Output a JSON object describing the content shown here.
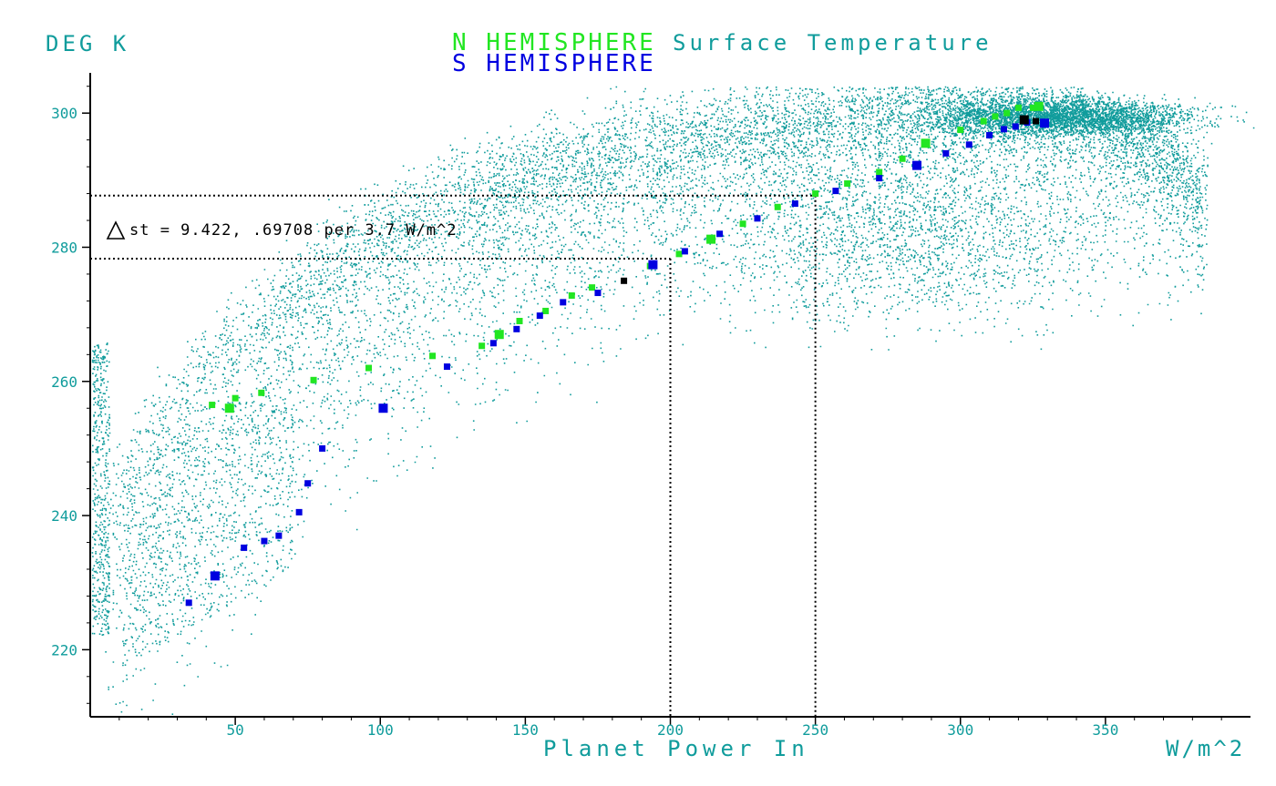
{
  "chart_data": {
    "type": "scatter",
    "title_parts": {
      "north": "N HEMISPHERE",
      "main": "Surface Temperature",
      "south": "S HEMISPHERE"
    },
    "ylabel": "DEG K",
    "xlabel": "Planet Power In",
    "xunit": "W/m^2",
    "xlim": [
      0,
      400
    ],
    "ylim": [
      210,
      306
    ],
    "xticks": [
      50,
      100,
      150,
      200,
      250,
      300,
      350
    ],
    "yticks": [
      220,
      240,
      260,
      280,
      300
    ],
    "annotation": {
      "text": "st = 9.422, .69708 per 3.7 W/m^2",
      "symbol": "triangle-delta",
      "ref_lines": [
        {
          "x": 200,
          "y": 278.3
        },
        {
          "x": 250,
          "y": 287.7
        }
      ]
    },
    "colors": {
      "scatter": "#109c9c",
      "north": "#22e622",
      "south": "#0000e0",
      "mixed": "#000000",
      "axis": "#000000"
    },
    "series": [
      {
        "name": "N HEMISPHERE",
        "color": "#22e622",
        "points": [
          [
            42,
            256.5
          ],
          [
            48,
            256
          ],
          [
            50,
            257.5
          ],
          [
            59,
            258.3
          ],
          [
            77,
            260.2
          ],
          [
            96,
            262
          ],
          [
            118,
            263.8
          ],
          [
            135,
            265.3
          ],
          [
            141,
            267
          ],
          [
            148,
            269
          ],
          [
            157,
            270.5
          ],
          [
            166,
            272.8
          ],
          [
            173,
            274
          ],
          [
            193,
            277.2
          ],
          [
            203,
            279
          ],
          [
            214,
            281.2
          ],
          [
            225,
            283.5
          ],
          [
            237,
            286
          ],
          [
            250,
            288
          ],
          [
            261,
            289.5
          ],
          [
            272,
            291.2
          ],
          [
            280,
            293.2
          ],
          [
            288,
            295.5
          ],
          [
            300,
            297.5
          ],
          [
            308,
            298.8
          ],
          [
            312,
            299.5
          ],
          [
            316,
            300
          ],
          [
            320,
            300.8
          ],
          [
            325,
            300.8
          ],
          [
            327,
            301
          ]
        ]
      },
      {
        "name": "S HEMISPHERE",
        "color": "#0000e0",
        "points": [
          [
            34,
            227
          ],
          [
            43,
            231
          ],
          [
            53,
            235.2
          ],
          [
            60,
            236.2
          ],
          [
            65,
            237
          ],
          [
            72,
            240.5
          ],
          [
            75,
            244.8
          ],
          [
            80,
            250
          ],
          [
            101,
            256
          ],
          [
            123,
            262.2
          ],
          [
            139,
            265.7
          ],
          [
            147,
            267.8
          ],
          [
            155,
            269.8
          ],
          [
            163,
            271.8
          ],
          [
            175,
            273.2
          ],
          [
            194,
            277.4
          ],
          [
            205,
            279.4
          ],
          [
            217,
            282
          ],
          [
            230,
            284.3
          ],
          [
            243,
            286.5
          ],
          [
            257,
            288.4
          ],
          [
            272,
            290.3
          ],
          [
            285,
            292.2
          ],
          [
            295,
            294
          ],
          [
            303,
            295.3
          ],
          [
            310,
            296.7
          ],
          [
            315,
            297.6
          ],
          [
            319,
            298
          ],
          [
            323,
            298.6
          ],
          [
            329,
            298.5
          ]
        ]
      },
      {
        "name": "",
        "color": "#000000",
        "points": [
          [
            184,
            275
          ],
          [
            322,
            299
          ],
          [
            326,
            298.8
          ]
        ]
      }
    ]
  }
}
